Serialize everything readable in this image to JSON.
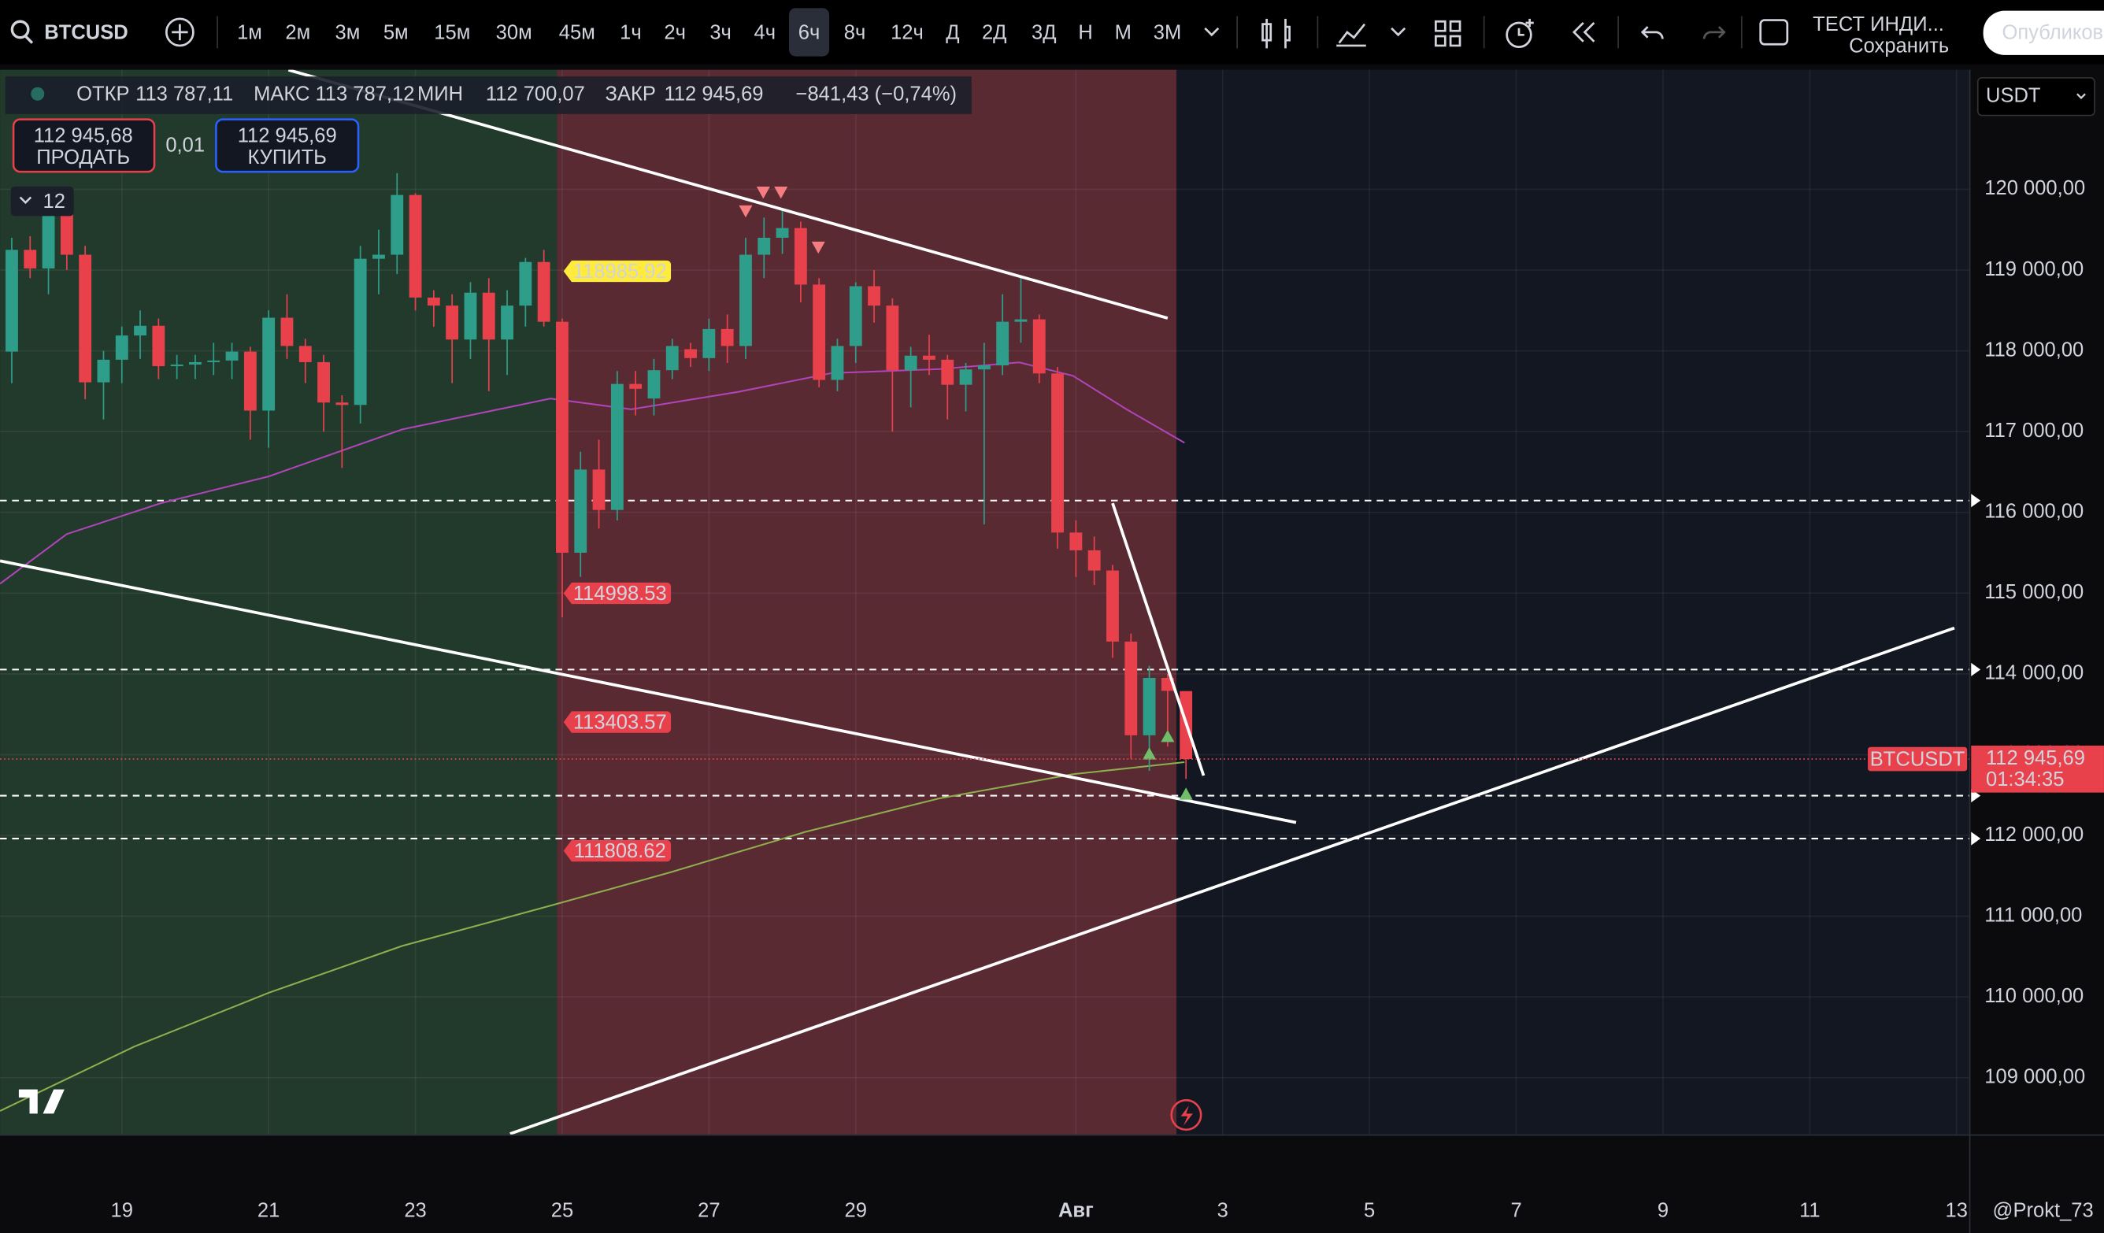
{
  "toolbar": {
    "symbol": "BTCUSD",
    "intervals": [
      "1м",
      "2м",
      "3м",
      "5м",
      "15м",
      "30м",
      "45м",
      "1ч",
      "2ч",
      "3ч",
      "4ч",
      "6ч",
      "8ч",
      "12ч",
      "Д",
      "2Д",
      "3Д",
      "Н",
      "М",
      "3М"
    ],
    "active_index": 11,
    "layout_name": "ТЕСТ ИНДИ...",
    "save": "Сохранить",
    "publish": "Опубликов"
  },
  "legend": {
    "open_label": "ОТКР",
    "open": "113 787,11",
    "high_label": "МАКС",
    "high": "113 787,12",
    "low_label": "МИН",
    "low": "112 700,07",
    "close_label": "ЗАКР",
    "close": "112 945,69",
    "change": "−841,43 (−0,74%)"
  },
  "trade": {
    "sell_price": "112 945,68",
    "sell": "ПРОДАТЬ",
    "spread": "0,01",
    "buy_price": "112 945,69",
    "buy": "КУПИТЬ"
  },
  "indicators_count": "12",
  "currency": "USDT",
  "user": "@Prokt_73",
  "chart_data": {
    "type": "candlestick",
    "up_color": "#2e9e8a",
    "down_color": "#e8414c",
    "x": [
      17.5,
      17.75,
      18,
      18.25,
      18.5,
      18.75,
      19,
      19.25,
      19.5,
      19.75,
      20,
      20.25,
      20.5,
      20.75,
      21,
      21.25,
      21.5,
      21.75,
      22,
      22.25,
      22.5,
      22.75,
      23,
      23.25,
      23.5,
      23.75,
      24,
      24.25,
      24.5,
      24.75,
      25,
      25.25,
      25.5,
      25.75,
      26,
      26.25,
      26.5,
      26.75,
      27,
      27.25,
      27.5,
      27.75,
      28,
      28.25,
      28.5,
      28.75,
      29,
      29.25,
      29.5,
      29.75,
      30,
      30.25,
      30.5,
      30.75,
      31,
      31.25,
      31.5,
      31.75,
      32,
      32.25,
      32.5,
      32.75,
      33,
      33.25,
      33.5
    ],
    "open": [
      117990,
      119250,
      119020,
      119850,
      119190,
      117610,
      117890,
      118190,
      118310,
      117810,
      117830,
      117860,
      117880,
      117990,
      117260,
      118410,
      118060,
      117860,
      117360,
      117330,
      119140,
      119190,
      119930,
      118660,
      118560,
      118140,
      118720,
      118140,
      118560,
      119100,
      118360,
      115500,
      116530,
      116030,
      117590,
      117410,
      117760,
      118020,
      117910,
      118270,
      118060,
      119190,
      119400,
      119520,
      118820,
      117640,
      118060,
      118800,
      118560,
      117760,
      117940,
      117890,
      117580,
      117770,
      117820,
      118360,
      118390,
      117720,
      115750,
      115530,
      115280,
      114400,
      113240,
      113950,
      113787.11
    ],
    "high": [
      119400,
      119420,
      120000,
      119950,
      119300,
      118000,
      118300,
      118500,
      118400,
      117950,
      117950,
      118100,
      118100,
      118050,
      118500,
      118700,
      118150,
      117950,
      117450,
      119300,
      119500,
      120200,
      119950,
      118750,
      118700,
      118850,
      118900,
      118750,
      119150,
      119250,
      118400,
      116750,
      116900,
      117750,
      117750,
      117900,
      118150,
      118100,
      118400,
      118450,
      119400,
      119650,
      119750,
      119600,
      118900,
      118150,
      118850,
      119000,
      118650,
      118050,
      118200,
      117950,
      117850,
      118100,
      118700,
      118900,
      118450,
      117800,
      115900,
      115700,
      115350,
      114500,
      114100,
      114000,
      113787.12
    ],
    "low": [
      117600,
      118900,
      118700,
      119000,
      117400,
      117150,
      117600,
      117900,
      117650,
      117650,
      117650,
      117700,
      117650,
      116900,
      116800,
      117900,
      117600,
      117000,
      116550,
      117100,
      118700,
      118950,
      118500,
      118300,
      117600,
      117900,
      117500,
      117700,
      118300,
      118300,
      114700,
      115200,
      115800,
      115900,
      117200,
      117200,
      117650,
      117800,
      117750,
      117850,
      117900,
      118900,
      119200,
      118600,
      117550,
      117500,
      117850,
      118350,
      117000,
      117300,
      117700,
      117150,
      117250,
      115850,
      117700,
      118100,
      117600,
      115550,
      115200,
      115100,
      114200,
      112950,
      112800,
      113100,
      112700.07
    ],
    "close": [
      119250,
      119020,
      119850,
      119190,
      117610,
      117890,
      118190,
      118310,
      117810,
      117830,
      117860,
      117880,
      117990,
      117260,
      118410,
      118060,
      117860,
      117360,
      117330,
      119140,
      119190,
      119930,
      118660,
      118560,
      118140,
      118720,
      118140,
      118560,
      119100,
      118360,
      115500,
      116530,
      116030,
      117590,
      117530,
      117760,
      118060,
      117910,
      118270,
      118060,
      119190,
      119400,
      119520,
      118820,
      117640,
      118060,
      118800,
      118560,
      117760,
      117940,
      117890,
      117580,
      117770,
      117820,
      118360,
      118390,
      117720,
      115750,
      115530,
      115280,
      114400,
      113240,
      113950,
      113790,
      112945.69
    ],
    "indicators": [
      {
        "color": "#b044b8",
        "x": [
          17.34,
          18.25,
          19.53,
          21.0,
          22.82,
          24.84,
          25.94,
          27.4,
          28.67,
          30.14,
          31.23,
          31.96,
          32.69,
          33.48
        ],
        "values": [
          115116,
          115731,
          116113,
          116445,
          117027,
          117409,
          117276,
          117492,
          117724,
          117774,
          117857,
          117691,
          117276,
          116861
        ]
      },
      {
        "color": "#8fae4e",
        "x": [
          17.34,
          19.17,
          21.0,
          22.82,
          24.84,
          26.48,
          28.31,
          30.14,
          31.96,
          33.48
        ],
        "values": [
          108589,
          109386,
          110051,
          110632,
          111130,
          111545,
          112043,
          112459,
          112758,
          112907
        ]
      }
    ],
    "trendlines": [
      {
        "x": [
          21.27,
          33.25
        ],
        "values": [
          121478,
          118405
        ]
      },
      {
        "x": [
          17.34,
          35.0
        ],
        "values": [
          115399,
          112160
        ]
      },
      {
        "x": [
          24.29,
          43.97
        ],
        "values": [
          108306,
          114568
        ]
      },
      {
        "x": [
          32.5,
          33.74
        ],
        "values": [
          116113,
          112741
        ]
      }
    ],
    "line_color": "#ffffff",
    "levels": [
      116146,
      114054,
      112492,
      111961
    ],
    "level_labels": {
      "values": [
        118985.92,
        114998.53,
        113403.57,
        111808.62
      ],
      "colors": [
        "#ffeb3b",
        "#e8414c",
        "#e8414c",
        "#e8414c"
      ]
    },
    "sell_signals": {
      "x": [
        27.5,
        27.74,
        27.98,
        28.49
      ],
      "values": [
        119734,
        119967,
        119967,
        119286
      ],
      "color": "#f77c80"
    },
    "buy_signals": {
      "x": [
        33.0,
        33.25,
        33.5
      ],
      "values": [
        113007,
        113223,
        112509
      ],
      "color": "#6fbf6a"
    },
    "zones": [
      {
        "from": 17.34,
        "to": 24.93,
        "color": "#223a2c"
      },
      {
        "from": 24.93,
        "to": 33.37,
        "color": "#5a2a33"
      }
    ],
    "price_tag": {
      "symbol": "BTCUSDT",
      "value": 112945.69,
      "label": "112 945,69",
      "countdown": "01:34:35"
    },
    "xlim": [
      17.34,
      44.18
    ],
    "ylim": [
      108290,
      121480
    ],
    "xticks": [
      19,
      21,
      23,
      25,
      27,
      29,
      {
        "value": 32,
        "label": "Авг"
      },
      {
        "value": 34,
        "label": "3"
      },
      {
        "value": 36,
        "label": "5"
      },
      {
        "value": 38,
        "label": "7"
      },
      {
        "value": 40,
        "label": "9"
      },
      {
        "value": 42,
        "label": "11"
      },
      {
        "value": 44,
        "label": "13"
      }
    ],
    "yticks": [
      {
        "value": 109000,
        "label": "109 000,00"
      },
      {
        "value": 110000,
        "label": "110 000,00"
      },
      {
        "value": 111000,
        "label": "111 000,00"
      },
      {
        "value": 112000,
        "label": "112 000,00"
      },
      {
        "value": 113000,
        "label": "113 000,00"
      },
      {
        "value": 114000,
        "label": "114 000,00"
      },
      {
        "value": 115000,
        "label": "115 000,00"
      },
      {
        "value": 116000,
        "label": "116 000,00"
      },
      {
        "value": 117000,
        "label": "117 000,00"
      },
      {
        "value": 118000,
        "label": "118 000,00"
      },
      {
        "value": 119000,
        "label": "119 000,00"
      },
      {
        "value": 120000,
        "label": "120 000,00"
      }
    ],
    "grid": true
  }
}
